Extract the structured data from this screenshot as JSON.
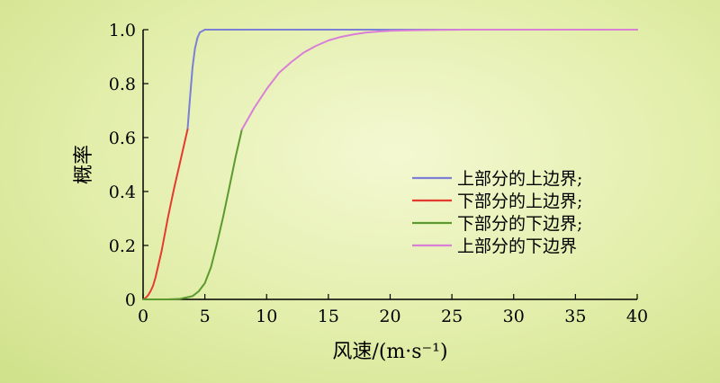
{
  "chart_data": {
    "type": "line",
    "title": "",
    "xlabel": "风速/(m·s⁻¹)",
    "ylabel": "概率",
    "xlim": [
      0,
      40
    ],
    "ylim": [
      0,
      1.0
    ],
    "x_ticks": [
      "0",
      "5",
      "10",
      "15",
      "20",
      "25",
      "30",
      "35",
      "40"
    ],
    "y_ticks": [
      "0",
      "0.2",
      "0.4",
      "0.6",
      "0.8",
      "1.0"
    ],
    "grid": false,
    "legend_position": "right",
    "series": [
      {
        "name": "上部分的上边界;",
        "color": "#7b7fd6",
        "x": [
          3.6,
          3.8,
          4.0,
          4.2,
          4.4,
          4.6,
          4.8,
          5.0,
          5.5,
          6.0,
          40.0
        ],
        "y": [
          0.63,
          0.75,
          0.86,
          0.93,
          0.97,
          0.99,
          0.995,
          1.0,
          1.0,
          1.0,
          1.0
        ]
      },
      {
        "name": "下部分的上边界;",
        "color": "#e53a2f",
        "x": [
          0.0,
          0.2,
          0.4,
          0.6,
          0.8,
          1.0,
          1.5,
          2.0,
          2.5,
          3.0,
          3.6
        ],
        "y": [
          0.0,
          0.005,
          0.015,
          0.03,
          0.05,
          0.08,
          0.18,
          0.3,
          0.41,
          0.51,
          0.63
        ]
      },
      {
        "name": "下部分的下边界;",
        "color": "#5c9a2e",
        "x": [
          0.0,
          2.0,
          3.0,
          4.0,
          4.5,
          5.0,
          5.5,
          6.0,
          6.5,
          7.0,
          7.5,
          8.0
        ],
        "y": [
          0.0,
          0.0,
          0.002,
          0.012,
          0.03,
          0.06,
          0.12,
          0.21,
          0.31,
          0.42,
          0.53,
          0.63
        ]
      },
      {
        "name": "上部分的下边界",
        "color": "#d97fd6",
        "x": [
          8.0,
          9.0,
          10.0,
          11.0,
          12.0,
          13.0,
          14.0,
          15.0,
          16.0,
          17.0,
          18.0,
          19.0,
          20.0,
          22.0,
          24.0,
          26.0,
          30.0,
          40.0
        ],
        "y": [
          0.63,
          0.71,
          0.78,
          0.84,
          0.88,
          0.915,
          0.94,
          0.96,
          0.973,
          0.982,
          0.989,
          0.993,
          0.996,
          0.998,
          0.999,
          1.0,
          1.0,
          1.0
        ]
      }
    ]
  }
}
